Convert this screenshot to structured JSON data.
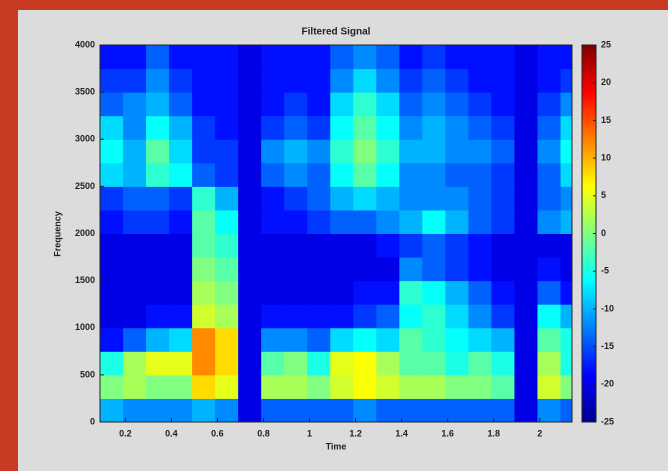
{
  "chart_data": {
    "type": "heatmap",
    "title": "Filtered Signal",
    "x_label": "Time",
    "y_label": "Frequency",
    "x": [
      0.14,
      0.24,
      0.34,
      0.44,
      0.54,
      0.64,
      0.74,
      0.84,
      0.94,
      1.04,
      1.14,
      1.24,
      1.34,
      1.44,
      1.54,
      1.64,
      1.74,
      1.84,
      1.94,
      2.04,
      2.14
    ],
    "y": [
      125,
      375,
      625,
      875,
      1125,
      1375,
      1625,
      1875,
      2125,
      2375,
      2625,
      2875,
      3125,
      3375,
      3625,
      3875
    ],
    "z": [
      [
        -10,
        -12,
        -12,
        -12,
        -10,
        -12,
        -20,
        -14,
        -14,
        -14,
        -14,
        -12,
        -14,
        -14,
        -14,
        -14,
        -14,
        -14,
        -20,
        -12,
        -14
      ],
      [
        0,
        2,
        0,
        0,
        8,
        5,
        -20,
        2,
        2,
        0,
        4,
        6,
        4,
        2,
        2,
        0,
        0,
        -2,
        -20,
        4,
        0
      ],
      [
        -5,
        2,
        5,
        5,
        12,
        8,
        -20,
        -2,
        0,
        -5,
        5,
        6,
        2,
        -2,
        -2,
        -5,
        -2,
        -5,
        -20,
        2,
        -5
      ],
      [
        -18,
        -14,
        -10,
        -8,
        12,
        8,
        -20,
        -12,
        -12,
        -14,
        -8,
        -6,
        -8,
        -2,
        -4,
        -6,
        -8,
        -10,
        -20,
        -2,
        -5
      ],
      [
        -20,
        -20,
        -18,
        -18,
        4,
        2,
        -20,
        -18,
        -18,
        -18,
        -18,
        -16,
        -14,
        -6,
        -4,
        -8,
        -12,
        -16,
        -20,
        -6,
        -10
      ],
      [
        -20,
        -20,
        -20,
        -20,
        2,
        0,
        -20,
        -20,
        -20,
        -20,
        -20,
        -18,
        -18,
        -4,
        -6,
        -10,
        -14,
        -18,
        -20,
        -14,
        -18
      ],
      [
        -20,
        -20,
        -20,
        -20,
        0,
        -2,
        -20,
        -20,
        -20,
        -20,
        -20,
        -20,
        -20,
        -12,
        -14,
        -16,
        -18,
        -20,
        -20,
        -18,
        -20
      ],
      [
        -20,
        -20,
        -20,
        -20,
        -2,
        -4,
        -20,
        -20,
        -20,
        -20,
        -20,
        -20,
        -18,
        -16,
        -14,
        -16,
        -18,
        -20,
        -20,
        -20,
        -20
      ],
      [
        -18,
        -16,
        -16,
        -18,
        -2,
        -6,
        -20,
        -18,
        -18,
        -16,
        -14,
        -14,
        -12,
        -10,
        -6,
        -10,
        -14,
        -16,
        -20,
        -12,
        -10
      ],
      [
        -16,
        -14,
        -14,
        -16,
        -4,
        -10,
        -20,
        -18,
        -16,
        -14,
        -10,
        -8,
        -10,
        -12,
        -12,
        -12,
        -14,
        -16,
        -20,
        -14,
        -12
      ],
      [
        -8,
        -10,
        -4,
        -6,
        -14,
        -16,
        -20,
        -14,
        -12,
        -14,
        -6,
        -2,
        -6,
        -12,
        -12,
        -14,
        -14,
        -16,
        -20,
        -14,
        -8
      ],
      [
        -6,
        -10,
        -2,
        -8,
        -16,
        -16,
        -20,
        -12,
        -10,
        -12,
        -4,
        0,
        -4,
        -10,
        -10,
        -12,
        -12,
        -14,
        -20,
        -12,
        -6
      ],
      [
        -8,
        -12,
        -6,
        -10,
        -16,
        -18,
        -20,
        -16,
        -14,
        -16,
        -6,
        -2,
        -6,
        -12,
        -10,
        -12,
        -14,
        -16,
        -20,
        -14,
        -8
      ],
      [
        -14,
        -12,
        -10,
        -14,
        -18,
        -18,
        -20,
        -18,
        -16,
        -18,
        -8,
        -4,
        -8,
        -14,
        -12,
        -14,
        -16,
        -18,
        -20,
        -16,
        -12
      ],
      [
        -16,
        -16,
        -12,
        -16,
        -18,
        -18,
        -20,
        -18,
        -18,
        -18,
        -12,
        -8,
        -12,
        -16,
        -14,
        -16,
        -18,
        -18,
        -20,
        -18,
        -16
      ],
      [
        -18,
        -18,
        -14,
        -18,
        -18,
        -18,
        -20,
        -18,
        -18,
        -18,
        -14,
        -12,
        -14,
        -18,
        -16,
        -18,
        -18,
        -18,
        -20,
        -18,
        -18
      ]
    ],
    "xlim": [
      0.09,
      2.14
    ],
    "xticks": [
      0.2,
      0.4,
      0.6,
      0.8,
      1,
      1.2,
      1.4,
      1.6,
      1.8,
      2
    ],
    "ylim": [
      0,
      4000
    ],
    "yticks": [
      0,
      500,
      1000,
      1500,
      2000,
      2500,
      3000,
      3500,
      4000
    ],
    "zlim": [
      -25,
      25
    ],
    "zticks": [
      25,
      20,
      15,
      10,
      5,
      0,
      -5,
      -10,
      -15,
      -20,
      -25
    ],
    "colormap": "jet"
  }
}
